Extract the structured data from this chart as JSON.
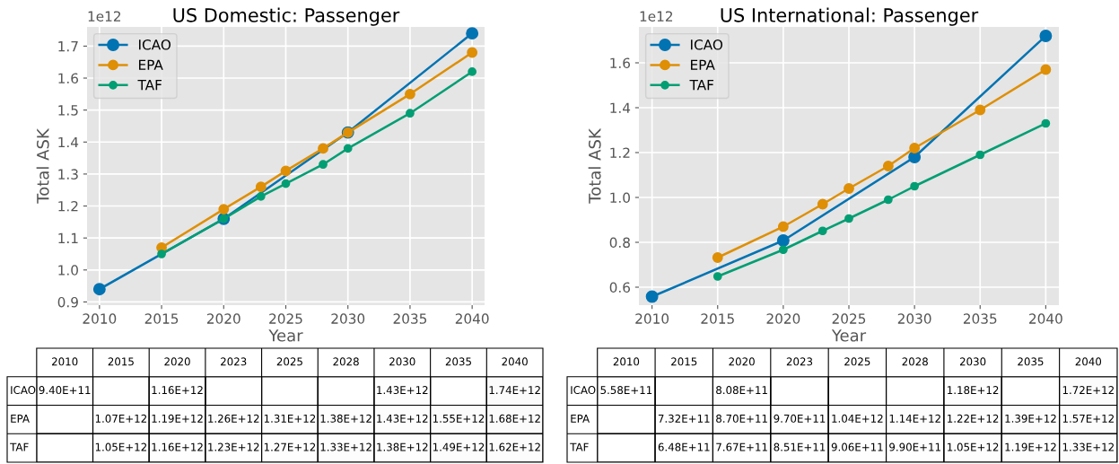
{
  "chart_data": [
    {
      "type": "line",
      "title": "US Domestic: Passenger",
      "xlabel": "Year",
      "ylabel": "Total ASK",
      "annotations": [
        "1e12"
      ],
      "x": [
        2010,
        2015,
        2020,
        2023,
        2025,
        2028,
        2030,
        2035,
        2040
      ],
      "series": [
        {
          "name": "ICAO",
          "color": "#0173b2",
          "values": [
            0.94,
            null,
            1.16,
            null,
            null,
            null,
            1.43,
            null,
            1.74
          ]
        },
        {
          "name": "EPA",
          "color": "#de8f05",
          "values": [
            null,
            1.07,
            1.19,
            1.26,
            1.31,
            1.38,
            1.43,
            1.55,
            1.68
          ]
        },
        {
          "name": "TAF",
          "color": "#029e73",
          "values": [
            null,
            1.05,
            1.16,
            1.23,
            1.27,
            1.33,
            1.38,
            1.49,
            1.62
          ]
        }
      ],
      "xlim": [
        2009,
        2041
      ],
      "xticks": [
        2010,
        2015,
        2020,
        2025,
        2030,
        2035,
        2040
      ],
      "ylim": [
        0.89,
        1.76
      ],
      "yticks": [
        {
          "value": 0.9,
          "label": "0.9"
        },
        {
          "value": 1.0,
          "label": "1.0"
        },
        {
          "value": 1.1,
          "label": "1.1"
        },
        {
          "value": 1.2,
          "label": "1.2"
        },
        {
          "value": 1.3,
          "label": "1.3"
        },
        {
          "value": 1.4,
          "label": "1.4"
        },
        {
          "value": 1.5,
          "label": "1.5"
        },
        {
          "value": 1.6,
          "label": "1.6"
        },
        {
          "value": 1.7,
          "label": "1.7"
        }
      ],
      "grid": true,
      "legend": "top left",
      "marker": "circle",
      "line_style": "solid"
    },
    {
      "type": "line",
      "title": "US International: Passenger",
      "xlabel": "Year",
      "ylabel": "Total ASK",
      "annotations": [
        "1e12"
      ],
      "x": [
        2010,
        2015,
        2020,
        2023,
        2025,
        2028,
        2030,
        2035,
        2040
      ],
      "series": [
        {
          "name": "ICAO",
          "color": "#0173b2",
          "values": [
            0.558,
            null,
            0.808,
            null,
            null,
            null,
            1.18,
            null,
            1.72
          ]
        },
        {
          "name": "EPA",
          "color": "#de8f05",
          "values": [
            null,
            0.732,
            0.87,
            0.97,
            1.04,
            1.14,
            1.22,
            1.39,
            1.57
          ]
        },
        {
          "name": "TAF",
          "color": "#029e73",
          "values": [
            null,
            0.648,
            0.767,
            0.851,
            0.906,
            0.99,
            1.05,
            1.19,
            1.33
          ]
        }
      ],
      "xlim": [
        2009,
        2041
      ],
      "xticks": [
        2010,
        2015,
        2020,
        2025,
        2030,
        2035,
        2040
      ],
      "ylim": [
        0.52,
        1.76
      ],
      "yticks": [
        {
          "value": 0.6,
          "label": "0.6"
        },
        {
          "value": 0.8,
          "label": "0.8"
        },
        {
          "value": 1.0,
          "label": "1.0"
        },
        {
          "value": 1.2,
          "label": "1.2"
        },
        {
          "value": 1.4,
          "label": "1.4"
        },
        {
          "value": 1.6,
          "label": "1.6"
        }
      ],
      "grid": true,
      "legend": "top left",
      "marker": "circle",
      "line_style": "solid"
    },
    {
      "type": "heatmap",
      "categories": [
        "2010",
        "2015",
        "2020",
        "2023",
        "2025",
        "2028",
        "2030",
        "2035",
        "2040"
      ],
      "y_categories": [
        "ICAO",
        "EPA",
        "TAF"
      ],
      "cells": [
        [
          940000000000,
          null,
          1160000000000,
          null,
          null,
          null,
          1430000000000,
          null,
          1740000000000
        ],
        [
          null,
          1070000000000,
          1190000000000,
          1260000000000,
          1310000000000,
          1380000000000,
          1430000000000,
          1550000000000,
          1680000000000
        ],
        [
          null,
          1050000000000,
          1160000000000,
          1230000000000,
          1270000000000,
          1330000000000,
          1380000000000,
          1490000000000,
          1620000000000
        ]
      ],
      "cell_labels": [
        [
          "9.40E+11",
          null,
          "1.16E+12",
          null,
          null,
          null,
          "1.43E+12",
          null,
          "1.74E+12"
        ],
        [
          null,
          "1.07E+12",
          "1.19E+12",
          "1.26E+12",
          "1.31E+12",
          "1.38E+12",
          "1.43E+12",
          "1.55E+12",
          "1.68E+12"
        ],
        [
          null,
          "1.05E+12",
          "1.16E+12",
          "1.23E+12",
          "1.27E+12",
          "1.33E+12",
          "1.38E+12",
          "1.49E+12",
          "1.62E+12"
        ]
      ]
    },
    {
      "type": "heatmap",
      "categories": [
        "2010",
        "2015",
        "2020",
        "2023",
        "2025",
        "2028",
        "2030",
        "2035",
        "2040"
      ],
      "y_categories": [
        "ICAO",
        "EPA",
        "TAF"
      ],
      "cells": [
        [
          558000000000,
          null,
          808000000000,
          null,
          null,
          null,
          1180000000000,
          null,
          1720000000000
        ],
        [
          null,
          732000000000,
          870000000000,
          970000000000,
          1040000000000,
          1140000000000,
          1220000000000,
          1390000000000,
          1570000000000
        ],
        [
          null,
          648000000000,
          767000000000,
          851000000000,
          906000000000,
          990000000000,
          1050000000000,
          1190000000000,
          1330000000000
        ]
      ],
      "cell_labels": [
        [
          "5.58E+11",
          null,
          "8.08E+11",
          null,
          null,
          null,
          "1.18E+12",
          null,
          "1.72E+12"
        ],
        [
          null,
          "7.32E+11",
          "8.70E+11",
          "9.70E+11",
          "1.04E+12",
          "1.14E+12",
          "1.22E+12",
          "1.39E+12",
          "1.57E+12"
        ],
        [
          null,
          "6.48E+11",
          "7.67E+11",
          "8.51E+11",
          "9.06E+11",
          "9.90E+11",
          "1.05E+12",
          "1.19E+12",
          "1.33E+12"
        ]
      ]
    }
  ]
}
